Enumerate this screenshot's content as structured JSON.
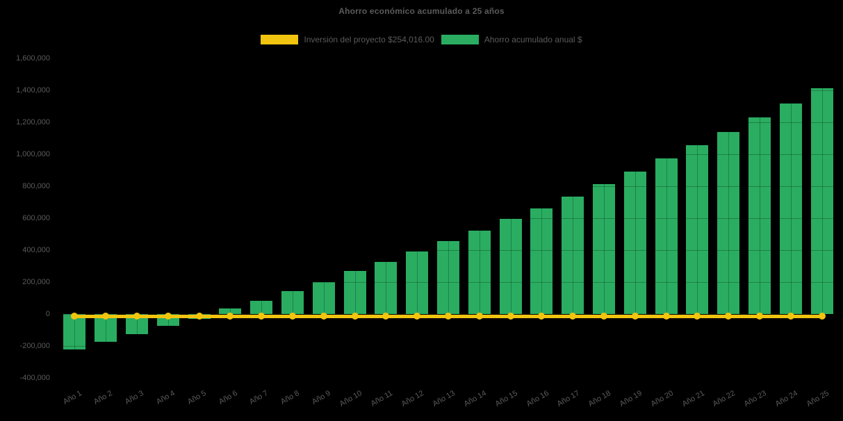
{
  "chart_data": {
    "type": "bar",
    "title": "Ahorro económico acumulado a 25 años",
    "legend_position": "top",
    "grid": "faint dark gridlines drawn over bars (horizontal at each tick, vertical at each bar center)",
    "background_color": "#000000",
    "text_color": "#5b5b5b",
    "xlabel": "",
    "ylabel": "",
    "ylim": [
      -400000,
      1600000
    ],
    "ytick_step": 200000,
    "ytick_labels": [
      "1,600,000",
      "1,400,000",
      "1,200,000",
      "1,000,000",
      "800,000",
      "600,000",
      "400,000",
      "200,000",
      "0",
      "-200,000",
      "-400,000"
    ],
    "ytick_values": [
      1600000,
      1400000,
      1200000,
      1000000,
      800000,
      600000,
      400000,
      200000,
      0,
      -200000,
      -400000
    ],
    "categories": [
      "Año 1",
      "Año 2",
      "Año 3",
      "Año 4",
      "Año 5",
      "Año 6",
      "Año 7",
      "Año 8",
      "Año 9",
      "Año 10",
      "Año 11",
      "Año 12",
      "Año 13",
      "Año 14",
      "Año 15",
      "Año 16",
      "Año 17",
      "Año 18",
      "Año 19",
      "Año 20",
      "Año 21",
      "Año 22",
      "Año 23",
      "Año 24",
      "Año 25"
    ],
    "series": [
      {
        "name": "Inversión del proyecto $254,016.00",
        "type": "line",
        "color": "#f1c40f",
        "investment_amount_label": "$254,016.00",
        "displayed_constant_value": -15000,
        "note": "flat yellow line with round markers drawn at the zero baseline across all 25 years"
      },
      {
        "name": "Ahorro acumulado anual $",
        "type": "bar",
        "color": "#2aad61",
        "values": [
          -222000,
          -174000,
          -126000,
          -75000,
          -30000,
          36000,
          84000,
          144000,
          201000,
          270000,
          325000,
          390000,
          456000,
          520000,
          597000,
          661000,
          736000,
          813000,
          890000,
          974000,
          1056000,
          1139000,
          1230000,
          1319000,
          1414000
        ]
      }
    ]
  }
}
